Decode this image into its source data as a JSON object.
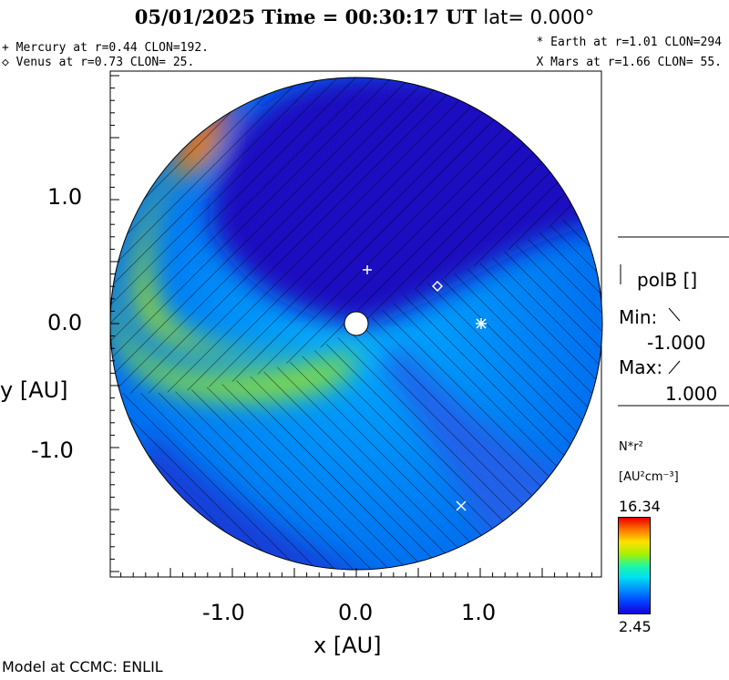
{
  "header": {
    "title_main": "05/01/2025 Time = 00:30:17 UT",
    "title_lat": "lat= 0.000°"
  },
  "planets": {
    "mercury": "+ Mercury at r=0.44 CLON=192.",
    "venus": "◇ Venus at r=0.73 CLON= 25.",
    "earth": "* Earth at  r=1.01 CLON=294",
    "mars": "X Mars at r=1.66 CLON= 55."
  },
  "polarity_legend": {
    "label": "polB []",
    "min_label": "Min:",
    "min_value": "-1.000",
    "max_label": "Max:",
    "max_value": "1.000"
  },
  "colorbar": {
    "quantity": "N*r²",
    "units": "[AU²cm⁻³]",
    "max": "16.34",
    "min": "2.45"
  },
  "footer": "Model at CCMC: ENLIL",
  "chart_data": {
    "type": "heatmap",
    "xlabel": "x [AU]",
    "ylabel": "y [AU]",
    "xlim": [
      -2,
      2
    ],
    "ylim": [
      -2,
      2
    ],
    "x_ticks": [
      "-1.0",
      "0.0",
      "1.0"
    ],
    "y_ticks": [
      "1.0",
      "0.0",
      "-1.0"
    ],
    "x_tick_values": [
      -1,
      0,
      1
    ],
    "y_tick_values": [
      1,
      0,
      -1
    ],
    "colorscale_range": [
      2.45,
      16.34
    ],
    "markers": [
      {
        "name": "Mercury",
        "symbol": "+",
        "x": 0.09,
        "y": 0.43
      },
      {
        "name": "Venus",
        "symbol": "◇",
        "x": 0.65,
        "y": 0.3
      },
      {
        "name": "Earth",
        "symbol": "*",
        "x": 1.0,
        "y": 0.0
      },
      {
        "name": "Mars",
        "symbol": "×",
        "x": 0.85,
        "y": -1.45
      }
    ]
  }
}
